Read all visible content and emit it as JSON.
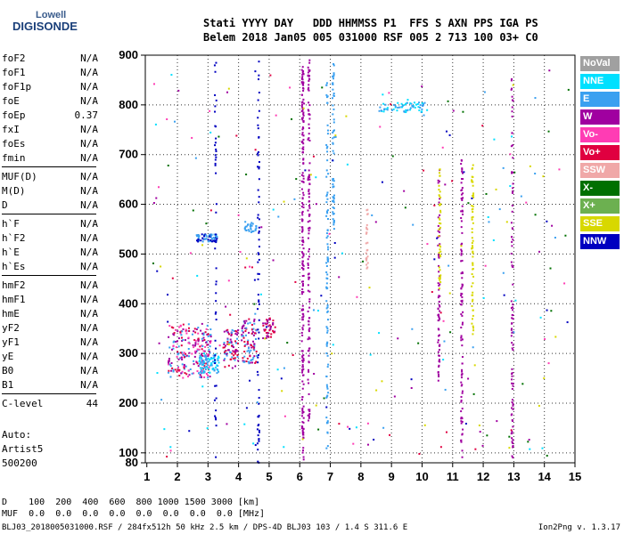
{
  "logo": {
    "top": "Lowell",
    "main": "DIGISONDE"
  },
  "header": {
    "line1": "Stati YYYY DAY   DDD HHMMSS P1  FFS S AXN PPS IGA PS",
    "line2": "Belem 2018 Jan05 005 031000 RSF 005 2 713 100 03+ C0"
  },
  "params": [
    {
      "name": "foF2",
      "value": "N/A"
    },
    {
      "name": "foF1",
      "value": "N/A"
    },
    {
      "name": "foF1p",
      "value": "N/A"
    },
    {
      "name": "foE",
      "value": "N/A"
    },
    {
      "name": "foEp",
      "value": "0.37"
    },
    {
      "name": "fxI",
      "value": "N/A"
    },
    {
      "name": "foEs",
      "value": "N/A"
    },
    {
      "name": "fmin",
      "value": "N/A"
    },
    {
      "name": "MUF(D)",
      "value": "N/A"
    },
    {
      "name": "M(D)",
      "value": "N/A"
    },
    {
      "name": "D",
      "value": "N/A"
    },
    {
      "name": "h`F",
      "value": "N/A"
    },
    {
      "name": "h`F2",
      "value": "N/A"
    },
    {
      "name": "h`E",
      "value": "N/A"
    },
    {
      "name": "h`Es",
      "value": "N/A"
    },
    {
      "name": "hmF2",
      "value": "N/A"
    },
    {
      "name": "hmF1",
      "value": "N/A"
    },
    {
      "name": "hmE",
      "value": "N/A"
    },
    {
      "name": "yF2",
      "value": "N/A"
    },
    {
      "name": "yF1",
      "value": "N/A"
    },
    {
      "name": "yE",
      "value": "N/A"
    },
    {
      "name": "B0",
      "value": "N/A"
    },
    {
      "name": "B1",
      "value": "N/A"
    },
    {
      "name": "C-level",
      "value": "44"
    }
  ],
  "auto": {
    "l1": "Auto:",
    "l2": "Artist5",
    "l3": "500200"
  },
  "bottom": {
    "d_row": "D    100  200  400  600  800 1000 1500 3000 [km]",
    "muf_row": "MUF  0.0  0.0  0.0  0.0  0.0  0.0  0.0  0.0 [MHz]",
    "info": "BLJ03_2018005031000.RSF / 284fx512h 50 kHz 2.5 km / DPS-4D BLJ03 103 / 1.4 S 311.6 E",
    "version": "Ion2Png v. 1.3.17"
  },
  "legend": [
    {
      "label": "NoVal",
      "color": "#a0a0a0"
    },
    {
      "label": "NNE",
      "color": "#00e0ff"
    },
    {
      "label": "E",
      "color": "#3aa0f0"
    },
    {
      "label": "W",
      "color": "#a000a0"
    },
    {
      "label": "Vo-",
      "color": "#ff3cb4"
    },
    {
      "label": "Vo+",
      "color": "#e00040"
    },
    {
      "label": "SSW",
      "color": "#f0a8a8"
    },
    {
      "label": "X-",
      "color": "#007000"
    },
    {
      "label": "X+",
      "color": "#6cb050"
    },
    {
      "label": "SSE",
      "color": "#d8d800"
    },
    {
      "label": "NNW",
      "color": "#0000c0"
    }
  ],
  "chart_data": {
    "type": "scatter",
    "xlabel": "",
    "ylabel": "",
    "xlim": [
      0.95,
      15.0
    ],
    "ylim": [
      80,
      900
    ],
    "x_ticks": [
      1,
      2,
      3,
      4,
      5,
      6,
      7,
      8,
      9,
      10,
      11,
      12,
      13,
      14,
      15
    ],
    "y_ticks": [
      80,
      100,
      200,
      300,
      400,
      500,
      600,
      700,
      800,
      900
    ],
    "grid": true,
    "legend_position": "right",
    "traces": [
      {
        "mode": "cluster",
        "x_range": [
          1.7,
          3.1
        ],
        "y_range": [
          250,
          360
        ],
        "colors": [
          "#e00040",
          "#a000a0",
          "#ff3cb4",
          "#3aa0f0"
        ],
        "n": 220
      },
      {
        "mode": "cluster",
        "x_range": [
          2.7,
          3.4
        ],
        "y_range": [
          260,
          300
        ],
        "colors": [
          "#3aa0f0",
          "#00e0ff"
        ],
        "n": 80
      },
      {
        "mode": "cluster",
        "x_range": [
          3.5,
          4.0
        ],
        "y_range": [
          270,
          350
        ],
        "colors": [
          "#e00040",
          "#a000a0",
          "#3aa0f0"
        ],
        "n": 80
      },
      {
        "mode": "cluster",
        "x_range": [
          4.1,
          4.6
        ],
        "y_range": [
          280,
          370
        ],
        "colors": [
          "#a000a0",
          "#e00040",
          "#3aa0f0"
        ],
        "n": 90
      },
      {
        "mode": "cluster",
        "x_range": [
          4.8,
          5.2
        ],
        "y_range": [
          330,
          370
        ],
        "colors": [
          "#a000a0",
          "#e00040"
        ],
        "n": 40
      },
      {
        "mode": "cluster",
        "x_range": [
          2.6,
          3.3
        ],
        "y_range": [
          525,
          540
        ],
        "colors": [
          "#3aa0f0",
          "#0000c0"
        ],
        "n": 60
      },
      {
        "mode": "cluster",
        "x_range": [
          4.2,
          4.6
        ],
        "y_range": [
          545,
          565
        ],
        "colors": [
          "#3aa0f0"
        ],
        "n": 25
      },
      {
        "mode": "cluster",
        "x_range": [
          8.6,
          10.2
        ],
        "y_range": [
          785,
          805
        ],
        "colors": [
          "#3aa0f0",
          "#00e0ff"
        ],
        "n": 60
      },
      {
        "mode": "vline",
        "x": 3.25,
        "y_range": [
          80,
          900
        ],
        "color": "#0000c0",
        "n": 50
      },
      {
        "mode": "vline",
        "x": 4.65,
        "y_range": [
          80,
          900
        ],
        "color": "#0000c0",
        "n": 70
      },
      {
        "mode": "vline",
        "x": 6.1,
        "y_range": [
          80,
          880
        ],
        "color": "#a000a0",
        "n": 200
      },
      {
        "mode": "vline",
        "x": 6.3,
        "y_range": [
          160,
          890
        ],
        "color": "#a000a0",
        "n": 120
      },
      {
        "mode": "vline",
        "x": 6.9,
        "y_range": [
          90,
          860
        ],
        "color": "#3aa0f0",
        "n": 90
      },
      {
        "mode": "vline",
        "x": 7.1,
        "y_range": [
          550,
          890
        ],
        "color": "#3aa0f0",
        "n": 60
      },
      {
        "mode": "vline",
        "x": 10.55,
        "y_range": [
          230,
          670
        ],
        "color": "#a000a0",
        "n": 70
      },
      {
        "mode": "vline",
        "x": 10.58,
        "y_range": [
          430,
          680
        ],
        "color": "#d8d800",
        "n": 40
      },
      {
        "mode": "vline",
        "x": 11.3,
        "y_range": [
          90,
          690
        ],
        "color": "#a000a0",
        "n": 100
      },
      {
        "mode": "vline",
        "x": 11.65,
        "y_range": [
          330,
          680
        ],
        "color": "#d8d800",
        "n": 60
      },
      {
        "mode": "vline",
        "x": 12.95,
        "y_range": [
          80,
          870
        ],
        "color": "#a000a0",
        "n": 90
      },
      {
        "mode": "vline",
        "x": 8.2,
        "y_range": [
          470,
          590
        ],
        "color": "#f0a8a8",
        "n": 25
      }
    ],
    "scatter_colors": [
      "#3aa0f0",
      "#00e0ff",
      "#a000a0",
      "#e00040",
      "#ff3cb4",
      "#d8d800",
      "#007000",
      "#0000c0"
    ]
  }
}
